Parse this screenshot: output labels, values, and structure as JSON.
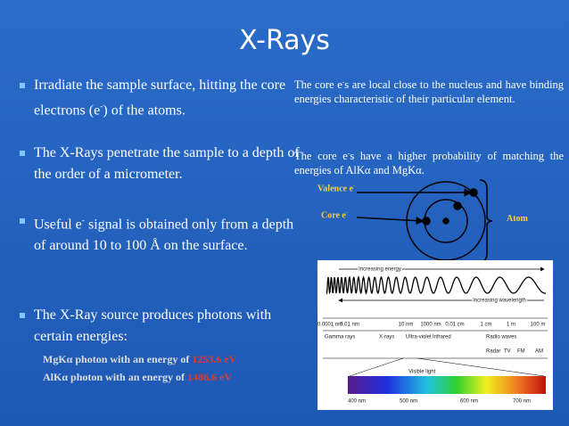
{
  "title": "X-Rays",
  "bullets": [
    {
      "before": "Irradiate the sample surface, hitting the core electrons (e",
      "sup": "-",
      "after": ") of the atoms."
    },
    {
      "text": "The X-Rays penetrate the sample to a depth of the order of a micrometer."
    },
    {
      "before": "Useful e",
      "sup": "-",
      "after": " signal is obtained only from a depth of around 10 to 100 Å on the surface."
    },
    {
      "text": "The X-Ray source produces photons with certain energies:",
      "subitems": [
        {
          "label": "MgKα photon with an energy of",
          "energy": "1253.6 eV"
        },
        {
          "label": "AlKα photon with an energy of",
          "energy": "1486.6 eV"
        }
      ]
    }
  ],
  "paragraphs": [
    {
      "before": "The core e",
      "sup": "-",
      "after": "s are local close to the nucleus and have binding energies characteristic of their particular element."
    },
    {
      "before": "The core e",
      "sup": "-",
      "after": "s have a higher probability of matching the energies of AlKα and MgKα."
    }
  ],
  "atom": {
    "valence": {
      "text": "Valence e",
      "sup": "-"
    },
    "core": {
      "text": "Core e",
      "sup": "-"
    },
    "label": "Atom"
  },
  "spectrum": {
    "energy": "Increasing energy",
    "wavelength": "Increasing wavelength",
    "scale": [
      "0.0001 nm",
      "0.01 nm",
      "10 nm",
      "1000 nm",
      "0.01 cm",
      "1 cm",
      "1 m",
      "100 m"
    ],
    "bands": [
      "Gamma rays",
      "X-rays",
      "Ultra-violet",
      "Infrared",
      "Radio waves"
    ],
    "radio": [
      "Radar",
      "TV",
      "FM",
      "AM"
    ],
    "visible": "Visible light",
    "visible_scale": [
      "400 nm",
      "500 nm",
      "600 nm",
      "700 nm"
    ]
  }
}
